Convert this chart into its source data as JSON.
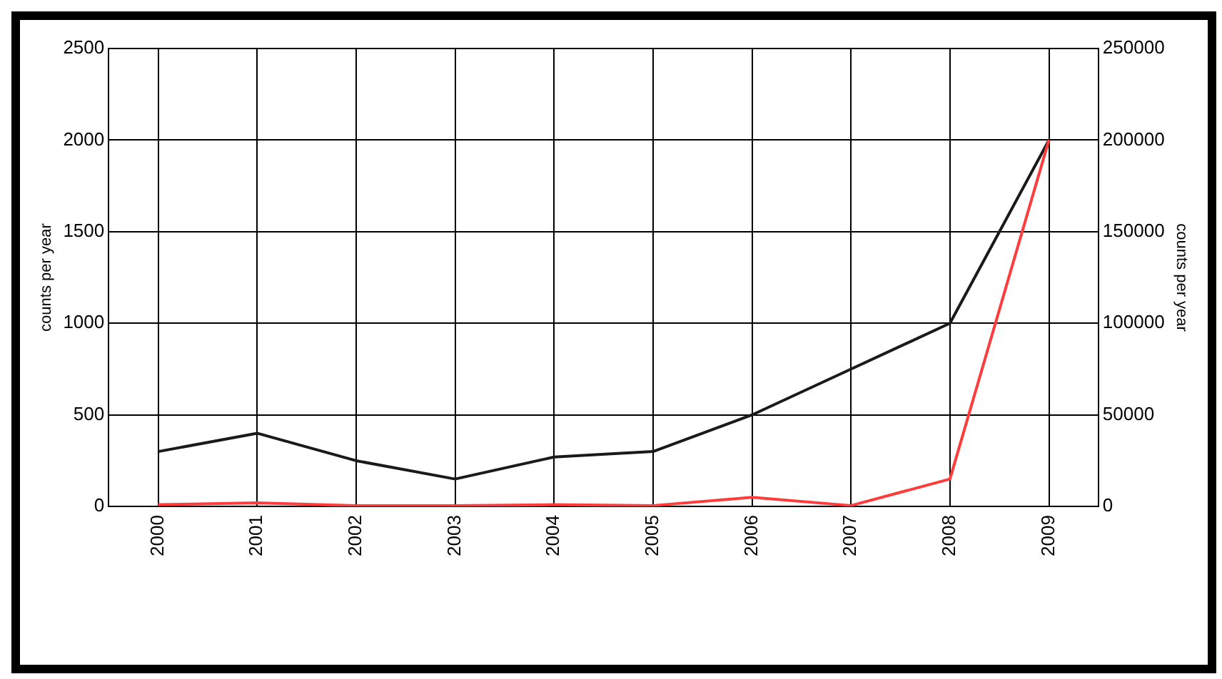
{
  "chart_data": {
    "type": "line",
    "categories": [
      "2000",
      "2001",
      "2002",
      "2003",
      "2004",
      "2005",
      "2006",
      "2007",
      "2008",
      "2009"
    ],
    "series": [
      {
        "color": "#ff3b3b",
        "values": [
          10,
          20,
          5,
          5,
          10,
          5,
          50,
          5,
          150,
          2000
        ]
      },
      {
        "color": "#1a1a1a",
        "axis": "y2",
        "values": [
          30000,
          40000,
          25000,
          15000,
          27000,
          30000,
          50000,
          75000,
          100000,
          200000
        ]
      }
    ],
    "ylabel": "counts per year",
    "y2label": "counts per year",
    "ylim": [
      0,
      2500
    ],
    "yticks": [
      0,
      500,
      1000,
      1500,
      2000,
      2500
    ],
    "y2lim": [
      0,
      250000
    ],
    "y2ticks": [
      0,
      50000,
      100000,
      150000,
      200000,
      250000
    ],
    "grid": true,
    "marker": "none",
    "line_style": "solid"
  }
}
